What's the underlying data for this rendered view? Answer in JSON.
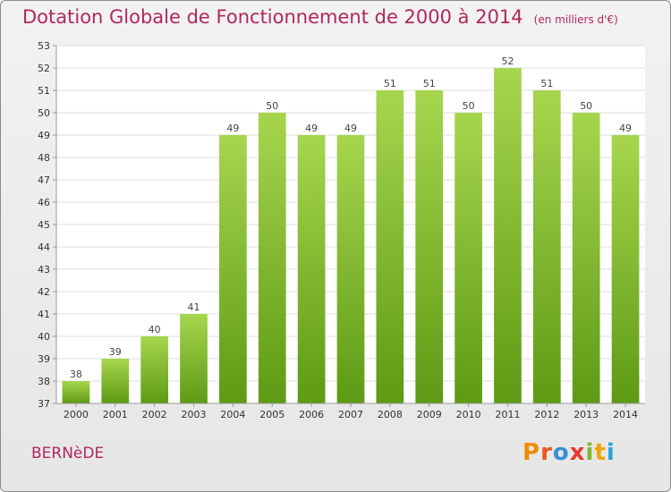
{
  "header": {
    "title": "Dotation Globale de Fonctionnement de 2000 à 2014",
    "subtitle": "(en milliers d'€)"
  },
  "footer": {
    "commune": "BERNèDE",
    "brand_letters": [
      "P",
      "r",
      "o",
      "x",
      "i",
      "t",
      "i"
    ],
    "brand_colors": [
      "#f08c00",
      "#e85a1e",
      "#3a8fd0",
      "#e63b2e",
      "#7cb82f",
      "#f2a400",
      "#29a3d8"
    ]
  },
  "chart_data": {
    "type": "bar",
    "title": "Dotation Globale de Fonctionnement de 2000 à 2014",
    "subtitle": "(en milliers d'€)",
    "categories": [
      "2000",
      "2001",
      "2002",
      "2003",
      "2004",
      "2005",
      "2006",
      "2007",
      "2008",
      "2009",
      "2010",
      "2011",
      "2012",
      "2013",
      "2014"
    ],
    "values": [
      38,
      39,
      40,
      41,
      49,
      50,
      49,
      49,
      51,
      51,
      50,
      52,
      51,
      50,
      49
    ],
    "xlabel": "",
    "ylabel": "",
    "ylim": [
      37,
      53
    ],
    "yticks": [
      "37",
      "38",
      "39",
      "40",
      "41",
      "42",
      "43",
      "44",
      "45",
      "46",
      "47",
      "48",
      "49",
      "50",
      "51",
      "52",
      "53"
    ],
    "grid": true,
    "bar_color_top": "#a6d64e",
    "bar_color_bottom": "#5e9a14",
    "value_labels": true
  }
}
